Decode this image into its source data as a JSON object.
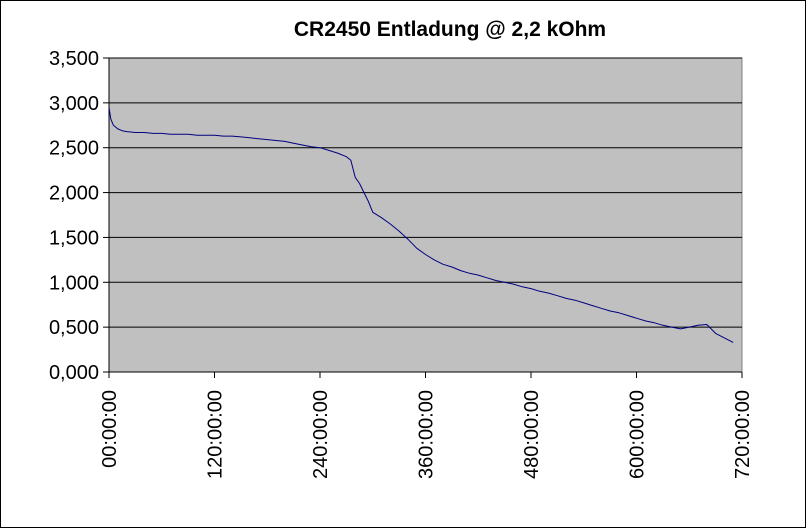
{
  "chart_data": {
    "type": "line",
    "title": "CR2450 Entladung @ 2,2 kOhm",
    "xlabel": "",
    "ylabel": "",
    "x_unit": "hours",
    "xlim": [
      0,
      720
    ],
    "ylim": [
      0,
      3.5
    ],
    "x_ticks": [
      0,
      120,
      240,
      360,
      480,
      600,
      720
    ],
    "x_tick_labels": [
      "00:00:00",
      "120:00:00",
      "240:00:00",
      "360:00:00",
      "480:00:00",
      "600:00:00",
      "720:00:00"
    ],
    "y_ticks": [
      0,
      0.5,
      1,
      1.5,
      2,
      2.5,
      3,
      3.5
    ],
    "y_tick_labels": [
      "0,000",
      "0,500",
      "1,000",
      "1,500",
      "2,000",
      "2,500",
      "3,000",
      "3,500"
    ],
    "grid": true,
    "legend": "none",
    "plot_background": "#c0c0c0",
    "line_color": "#000080",
    "series": [
      {
        "x": [
          0,
          2,
          5,
          10,
          15,
          20,
          30,
          40,
          50,
          60,
          70,
          80,
          90,
          100,
          110,
          120,
          130,
          140,
          150,
          160,
          170,
          180,
          190,
          200,
          210,
          220,
          230,
          240,
          250,
          260,
          270,
          275,
          280,
          285,
          290,
          295,
          300,
          310,
          320,
          330,
          340,
          350,
          360,
          370,
          380,
          390,
          400,
          410,
          420,
          430,
          440,
          450,
          460,
          470,
          480,
          490,
          500,
          510,
          520,
          530,
          540,
          550,
          560,
          570,
          580,
          590,
          600,
          610,
          620,
          630,
          640,
          650,
          660,
          670,
          680,
          690,
          700,
          710
        ],
        "y": [
          2.95,
          2.82,
          2.75,
          2.71,
          2.69,
          2.68,
          2.67,
          2.67,
          2.66,
          2.66,
          2.65,
          2.65,
          2.65,
          2.64,
          2.64,
          2.64,
          2.63,
          2.63,
          2.62,
          2.61,
          2.6,
          2.59,
          2.58,
          2.57,
          2.55,
          2.53,
          2.51,
          2.5,
          2.47,
          2.44,
          2.4,
          2.36,
          2.17,
          2.1,
          2.0,
          1.9,
          1.78,
          1.72,
          1.65,
          1.57,
          1.48,
          1.38,
          1.31,
          1.25,
          1.2,
          1.17,
          1.13,
          1.1,
          1.08,
          1.05,
          1.02,
          1.0,
          0.98,
          0.95,
          0.93,
          0.9,
          0.88,
          0.85,
          0.82,
          0.8,
          0.77,
          0.74,
          0.71,
          0.68,
          0.66,
          0.63,
          0.6,
          0.57,
          0.55,
          0.52,
          0.5,
          0.48,
          0.5,
          0.52,
          0.53,
          0.43,
          0.38,
          0.33
        ]
      }
    ]
  }
}
